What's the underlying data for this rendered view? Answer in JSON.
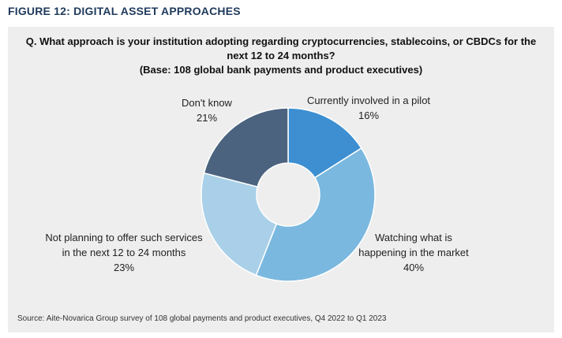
{
  "figure_title": "FIGURE 12: DIGITAL ASSET APPROACHES",
  "question_lines": [
    "Q. What approach is your institution adopting regarding cryptocurrencies, stablecoins, or CBDCs for the",
    "next 12 to 24 months?",
    "(Base: 108 global bank payments and product executives)"
  ],
  "source": "Source: Aite-Novarica Group survey of 108 global payments and product executives, Q4 2022 to Q1 2023",
  "chart_data": {
    "type": "pie",
    "donut": true,
    "start": "12 o'clock, clockwise",
    "slices": [
      {
        "label_lines": [
          "Currently involved in a pilot"
        ],
        "value": 16,
        "value_label": "16%",
        "color": "#3d8fd1"
      },
      {
        "label_lines": [
          "Watching what is",
          "happening in the market"
        ],
        "value": 40,
        "value_label": "40%",
        "color": "#7ab8df"
      },
      {
        "label_lines": [
          "Not planning to offer such services",
          "in the next 12 to 24 months"
        ],
        "value": 23,
        "value_label": "23%",
        "color": "#a9d0e8"
      },
      {
        "label_lines": [
          "Don't know"
        ],
        "value": 21,
        "value_label": "21%",
        "color": "#4b637f"
      }
    ]
  }
}
